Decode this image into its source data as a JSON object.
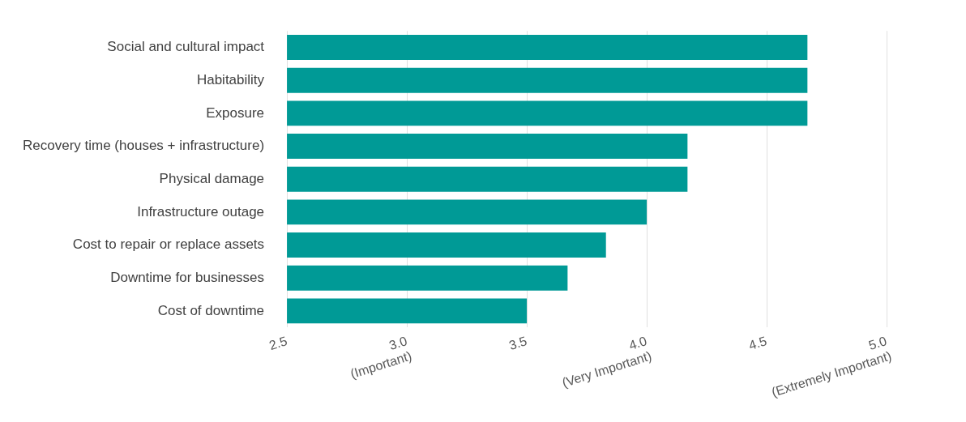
{
  "chart_data": {
    "type": "bar",
    "orientation": "horizontal",
    "categories": [
      "Social and cultural impact",
      "Habitability",
      "Exposure",
      "Recovery time (houses + infrastructure)",
      "Physical damage",
      "Infrastructure outage",
      "Cost to repair or replace assets",
      "Downtime for businesses",
      "Cost of downtime"
    ],
    "values": [
      4.67,
      4.67,
      4.67,
      4.17,
      4.17,
      4.0,
      3.83,
      3.67,
      3.5
    ],
    "color": "#009a96",
    "xlim": [
      2.5,
      5
    ],
    "xticks": [
      {
        "value": 2.5,
        "label": "2.5"
      },
      {
        "value": 3,
        "label": "3.0\n(Important)"
      },
      {
        "value": 3.5,
        "label": "3.5"
      },
      {
        "value": 4,
        "label": "4.0\n(Very Important)"
      },
      {
        "value": 4.5,
        "label": "4.5"
      },
      {
        "value": 5,
        "label": "5.0\n(Extremely Important)"
      }
    ],
    "grid": "x"
  }
}
